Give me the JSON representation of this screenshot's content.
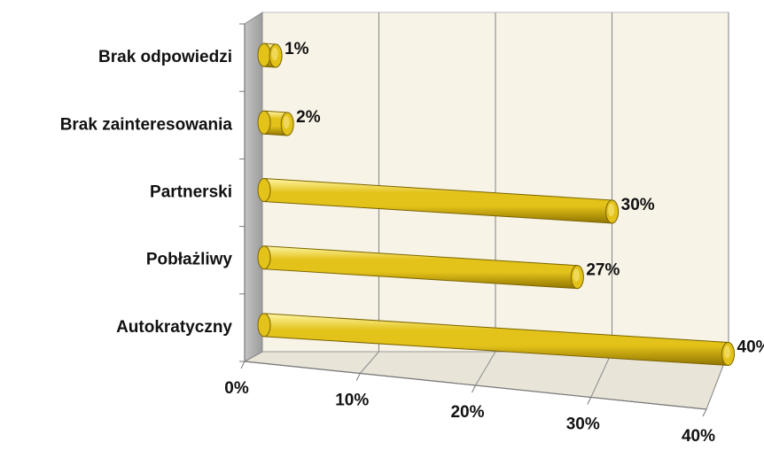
{
  "chart_data": {
    "type": "bar",
    "orientation": "horizontal",
    "style": "3d-cylinder",
    "categories": [
      "Autokratyczny",
      "Pobłażliwy",
      "Partnerski",
      "Brak zainteresowania",
      "Brak odpowiedzi"
    ],
    "values": [
      40,
      27,
      30,
      2,
      1
    ],
    "value_labels": [
      "40%",
      "27%",
      "30%",
      "2%",
      "1%"
    ],
    "x_ticks": [
      "0%",
      "10%",
      "20%",
      "30%",
      "40%"
    ],
    "xlim": [
      0,
      40
    ],
    "grid": true,
    "legend": "none",
    "title": "",
    "xlabel": "",
    "ylabel": "",
    "colors": {
      "bar": "#e3c219",
      "bar_dark": "#8f7400",
      "bar_light": "#fff6a6",
      "back_wall": "#f7f3e6",
      "side_wall": "#aaaaaa",
      "floor": "#e8e4d8",
      "grid": "#8c8c8c"
    }
  }
}
